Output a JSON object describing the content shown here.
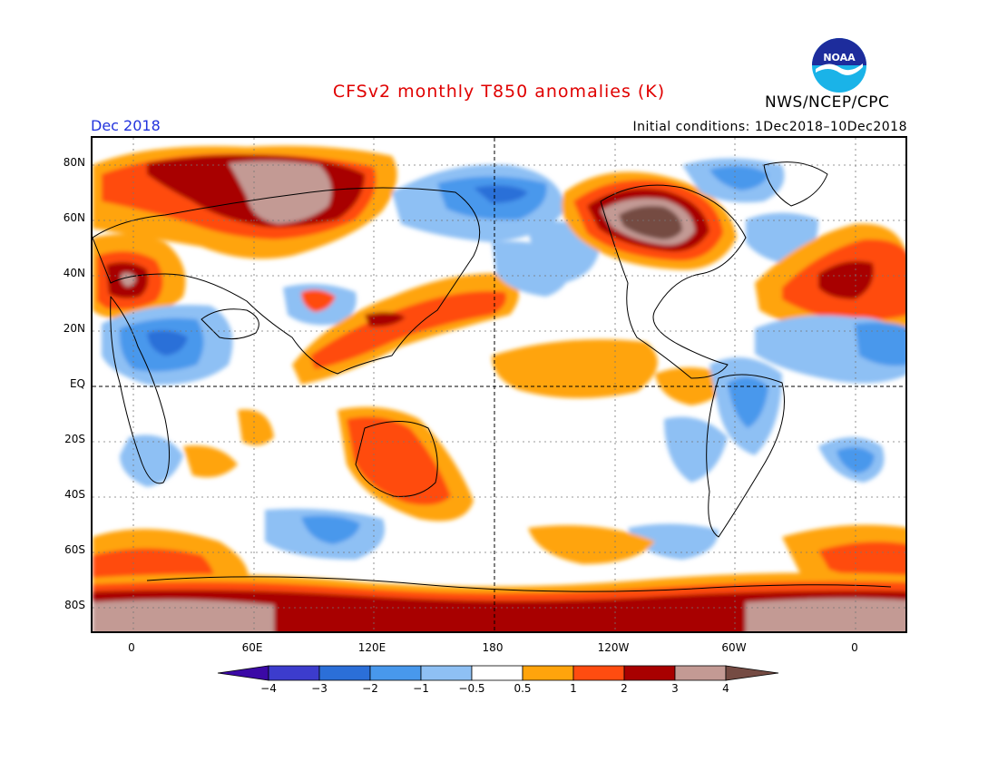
{
  "header": {
    "title": "CFSv2 monthly T850 anomalies (K)",
    "month": "Dec 2018",
    "initial_conditions": "Initial conditions: 1Dec2018–10Dec2018",
    "agency": "NWS/NCEP/CPC",
    "logo_text": "NOAA"
  },
  "map": {
    "lat_labels": [
      "80N",
      "60N",
      "40N",
      "20N",
      "EQ",
      "20S",
      "40S",
      "60S",
      "80S"
    ],
    "lon_labels": [
      "0",
      "60E",
      "120E",
      "180",
      "120W",
      "60W",
      "0"
    ]
  },
  "colorbar": {
    "labels": [
      "−4",
      "−3",
      "−2",
      "−1",
      "−0.5",
      "0.5",
      "1",
      "2",
      "3",
      "4"
    ],
    "colors": [
      "#3b09a6",
      "#3c3ccd",
      "#2b6fd8",
      "#4898ec",
      "#8ec0f4",
      "#ffffff",
      "#ffa40c",
      "#ff4c10",
      "#a80000",
      "#c39a94",
      "#754b43"
    ]
  }
}
